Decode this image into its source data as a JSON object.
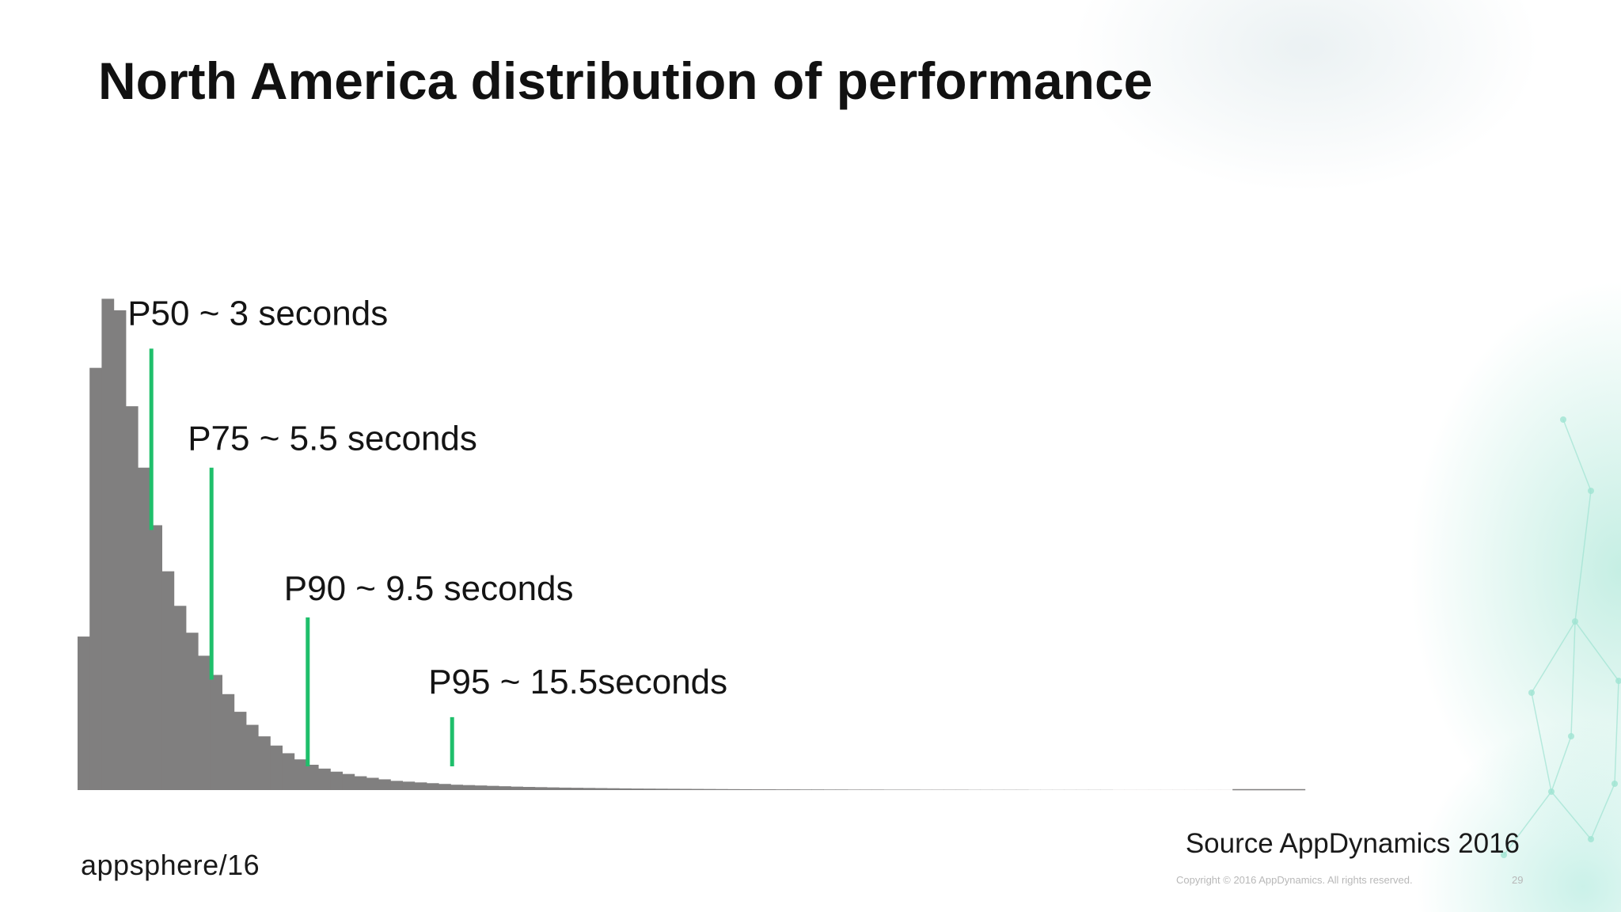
{
  "slide": {
    "title": "North America distribution of performance",
    "source": "Source AppDynamics 2016",
    "copyright": "Copyright © 2016 AppDynamics. All rights reserved.",
    "page_number": "29",
    "logo_text": "appsphere",
    "logo_suffix": "/16"
  },
  "colors": {
    "bars": "#807f7f",
    "markers": "#1fbf6b",
    "background": "#ffffff",
    "accent_glow": "#9fe3d2"
  },
  "chart_data": {
    "type": "bar",
    "title": "",
    "xlabel": "",
    "ylabel": "",
    "x_unit": "seconds",
    "bin_width": 0.5,
    "bin_start": 0,
    "values": [
      200,
      550,
      640,
      625,
      500,
      420,
      345,
      285,
      240,
      205,
      175,
      150,
      125,
      102,
      85,
      70,
      58,
      48,
      40,
      33,
      28,
      24,
      21,
      18,
      16,
      14,
      12,
      11,
      10,
      9,
      8,
      7,
      6.5,
      6,
      5.5,
      5,
      4.5,
      4.1,
      3.8,
      3.5,
      3.2,
      3.0,
      2.8,
      2.6,
      2.4,
      2.2,
      2.0,
      1.9,
      1.8,
      1.7,
      1.6,
      1.5,
      1.4,
      1.3,
      1.2,
      1.1,
      1.0,
      1.0,
      0.9,
      0.9,
      0.8,
      0.8,
      0.7,
      0.7,
      0.6,
      0.6,
      0.6,
      0.5,
      0.5,
      0.5,
      0.4,
      0.4,
      0.4,
      0.4,
      0.3,
      0.3,
      0.3,
      0.3,
      0.3,
      0.2,
      0.2,
      0.2,
      0.2,
      0.2,
      0.2,
      0.2,
      0.1,
      0.1,
      0.1,
      0.1,
      0.1,
      0.1,
      0.1,
      0.1,
      0.1,
      0.1
    ],
    "ylim": [
      0,
      660
    ],
    "xlim": [
      0,
      48
    ],
    "grid": false,
    "legend": "none",
    "annotations": [
      {
        "label": "P50 ~ 3 seconds",
        "x": 3,
        "marker_top": 575
      },
      {
        "label": "P75 ~ 5.5 seconds",
        "x": 5.5,
        "marker_top": 420
      },
      {
        "label": "P90 ~ 9.5 seconds",
        "x": 9.5,
        "marker_top": 225
      },
      {
        "label": "P95 ~ 15.5seconds",
        "x": 15.5,
        "marker_top": 95
      }
    ]
  }
}
